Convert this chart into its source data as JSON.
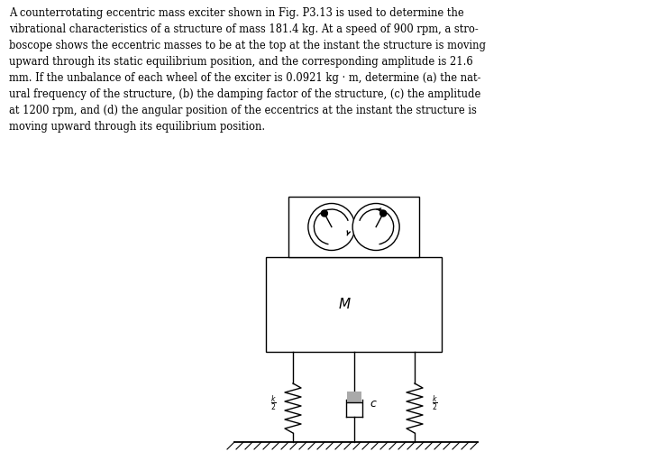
{
  "text_block": "A counterrotating eccentric mass exciter shown in Fig. P3.13 is used to determine the\nvibrational characteristics of a structure of mass 181.4 kg. At a speed of 900 rpm, a stro-\nboscope shows the eccentric masses to be at the top at the instant the structure is moving\nupward through its static equilibrium position, and the corresponding amplitude is 21.6\nmm. If the unbalance of each wheel of the exciter is 0.0921 kg · m, determine (a) the nat-\nural frequency of the structure, (b) the damping factor of the structure, (c) the amplitude\nat 1200 rpm, and (d) the angular position of the eccentrics at the instant the structure is\nmoving upward through its equilibrium position.",
  "bg_color": "#ffffff",
  "line_color": "#000000",
  "text_color": "#000000",
  "fig_width": 7.2,
  "fig_height": 5.21,
  "dpi": 100
}
